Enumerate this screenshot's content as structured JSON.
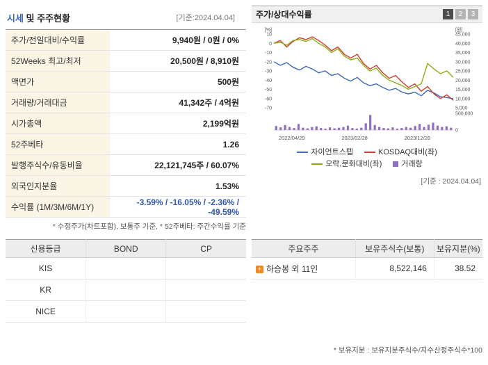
{
  "header": {
    "title_highlight": "시세",
    "title_rest": " 및 주주현황",
    "date_note": "[기준:2024.04.04]"
  },
  "quote_table": {
    "rows": [
      {
        "label": "주가/전일대비/수익률",
        "value": "9,940원 / 0원 / 0%"
      },
      {
        "label": "52Weeks 최고/최저",
        "value": "20,500원 / 8,910원"
      },
      {
        "label": "액면가",
        "value": "500원"
      },
      {
        "label": "거래량/거래대금",
        "value": "41,342주 / 4억원"
      },
      {
        "label": "시가총액",
        "value": "2,199억원"
      },
      {
        "label": "52주베타",
        "value": "1.26"
      },
      {
        "label": "발행주식수/유동비율",
        "value": "22,121,745주 / 60.07%"
      },
      {
        "label": "외국인지분율",
        "value": "1.53%"
      },
      {
        "label": "수익률 (1M/3M/6M/1Y)",
        "value": "-3.59% / -16.05% / -2.36% / -49.59%"
      }
    ],
    "footnote": "* 수정주가(차트포함), 보통주 기준, * 52주베타: 주간수익률 기준"
  },
  "chart_panel": {
    "title": "주가/상대수익률",
    "pages": [
      "1",
      "2",
      "3"
    ],
    "active_page": "1",
    "date_note": "[기준 : 2024.04.04]"
  },
  "chart_data": {
    "type": "line",
    "title": "주가/상대수익률",
    "x_ticks": [
      "2022/04/29",
      "2023/02/28",
      "2023/12/28"
    ],
    "left_axis": {
      "label": "[%]",
      "min": -70,
      "max": 10,
      "ticks": [
        10,
        0,
        -10,
        -20,
        -30,
        -40,
        -50,
        -60,
        -70
      ]
    },
    "right_axis": {
      "label": "[원]",
      "min": 5000,
      "max": 45000,
      "ticks": [
        45000,
        40000,
        35000,
        30000,
        25000,
        20000,
        15000,
        10000,
        5000
      ]
    },
    "volume_axis": {
      "ticks": [
        500000,
        0
      ],
      "max": 500000
    },
    "series": [
      {
        "name": "자이언트스텝",
        "color": "#3f68b5",
        "axis": "right",
        "values": [
          30000,
          28000,
          29500,
          27000,
          25500,
          27500,
          26000,
          24000,
          25000,
          22500,
          23500,
          21000,
          19500,
          21500,
          18500,
          17000,
          18000,
          16000,
          14500,
          15500,
          13500,
          12500,
          13500,
          11500,
          14500,
          13000,
          11000,
          10500,
          9940
        ]
      },
      {
        "name": "KOSDAQ대비(좌)",
        "color": "#cc3b30",
        "axis": "left",
        "values": [
          0,
          3,
          -4,
          2,
          6,
          4,
          7,
          3,
          -2,
          -8,
          -4,
          -12,
          -16,
          -12,
          -22,
          -28,
          -24,
          -32,
          -38,
          -35,
          -42,
          -48,
          -44,
          -52,
          -47,
          -55,
          -60,
          -56,
          -62
        ]
      },
      {
        "name": "오락,문화대비(좌)",
        "color": "#8fae17",
        "axis": "left",
        "values": [
          0,
          1,
          -2,
          3,
          4,
          2,
          5,
          0,
          -4,
          -10,
          -6,
          -14,
          -18,
          -16,
          -24,
          -30,
          -27,
          -35,
          -40,
          -43,
          -46,
          -50,
          -47,
          -44,
          -22,
          -28,
          -33,
          -30,
          -37
        ]
      }
    ],
    "volume": {
      "name": "거래량",
      "color": "#8f6fc4",
      "values": [
        120000,
        80000,
        150000,
        90000,
        60000,
        180000,
        70000,
        50000,
        90000,
        110000,
        60000,
        40000,
        80000,
        50000,
        70000,
        90000,
        130000,
        60000,
        40000,
        70000,
        200000,
        450000,
        150000,
        90000,
        60000,
        50000,
        80000,
        40000,
        60000,
        90000,
        70000,
        120000,
        180000,
        90000,
        160000,
        220000,
        130000,
        90000,
        110000,
        70000
      ]
    }
  },
  "credit_table": {
    "headers": [
      "신용등급",
      "BOND",
      "CP"
    ],
    "rows": [
      [
        "KIS",
        "",
        ""
      ],
      [
        "KR",
        "",
        ""
      ],
      [
        "NICE",
        "",
        ""
      ]
    ]
  },
  "holders_table": {
    "headers": [
      "주요주주",
      "보유주식수(보통)",
      "보유지분(%)"
    ],
    "row": {
      "name": "하승봉 외 11인",
      "shares": "8,522,146",
      "pct": "38.52"
    },
    "footnote": "* 보유지분 : 보유지분주식수/지수산정주식수*100"
  }
}
